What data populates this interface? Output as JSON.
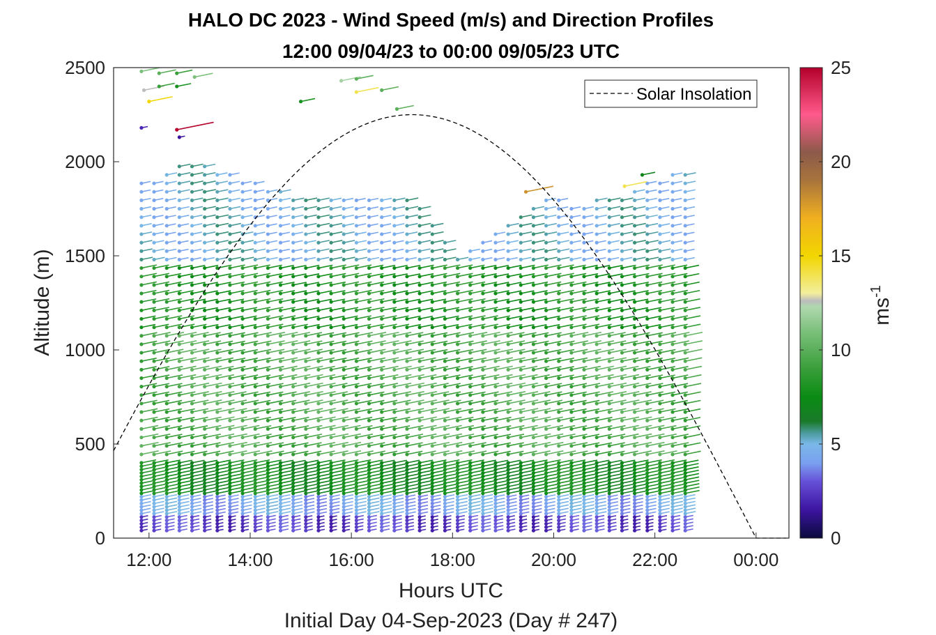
{
  "chart_data": {
    "type": "scatter",
    "title": "HALO DC 2023 - Wind Speed (m/s) and Direction Profiles",
    "subtitle": "12:00 09/04/23 to 00:00 09/05/23  UTC",
    "xlabel": "Hours UTC",
    "xlabel2": "Initial Day 04-Sep-2023 (Day # 247)",
    "ylabel": "Altitude (m)",
    "xlim": [
      11.3,
      24.65
    ],
    "ylim": [
      0,
      2500
    ],
    "xticks": [
      {
        "v": 12,
        "label": "12:00"
      },
      {
        "v": 14,
        "label": "14:00"
      },
      {
        "v": 16,
        "label": "16:00"
      },
      {
        "v": 18,
        "label": "18:00"
      },
      {
        "v": 20,
        "label": "20:00"
      },
      {
        "v": 22,
        "label": "22:00"
      },
      {
        "v": 24,
        "label": "00:00"
      }
    ],
    "yticks": [
      {
        "v": 0,
        "label": "0"
      },
      {
        "v": 500,
        "label": "500"
      },
      {
        "v": 1000,
        "label": "1000"
      },
      {
        "v": 1500,
        "label": "1500"
      },
      {
        "v": 2000,
        "label": "2000"
      },
      {
        "v": 2500,
        "label": "2500"
      }
    ],
    "colorbar": {
      "label": "ms",
      "label_sup": "-1",
      "range": [
        0,
        25
      ],
      "ticks": [
        {
          "v": 0,
          "label": "0"
        },
        {
          "v": 5,
          "label": "5"
        },
        {
          "v": 10,
          "label": "10"
        },
        {
          "v": 15,
          "label": "15"
        },
        {
          "v": 20,
          "label": "20"
        },
        {
          "v": 25,
          "label": "25"
        }
      ],
      "stops": [
        {
          "v": 0,
          "color": "#0a0a3c"
        },
        {
          "v": 1.5,
          "color": "#3c14a0"
        },
        {
          "v": 3,
          "color": "#6650d8"
        },
        {
          "v": 4,
          "color": "#7aa0f0"
        },
        {
          "v": 5,
          "color": "#7ab8e8"
        },
        {
          "v": 5.6,
          "color": "#4a9a9a"
        },
        {
          "v": 6.2,
          "color": "#1a7a2a"
        },
        {
          "v": 7.5,
          "color": "#0a8c14"
        },
        {
          "v": 9,
          "color": "#3a9e3a"
        },
        {
          "v": 11,
          "color": "#7cc07c"
        },
        {
          "v": 12.3,
          "color": "#b0d8b0"
        },
        {
          "v": 12.6,
          "color": "#bcbcbc"
        },
        {
          "v": 13,
          "color": "#f2ee9e"
        },
        {
          "v": 15,
          "color": "#f2d600"
        },
        {
          "v": 17,
          "color": "#f0b020"
        },
        {
          "v": 19,
          "color": "#a8743c"
        },
        {
          "v": 20.5,
          "color": "#8c5a4a"
        },
        {
          "v": 22.5,
          "color": "#ff5a8c"
        },
        {
          "v": 25,
          "color": "#b4002a"
        }
      ]
    },
    "legend": {
      "label": "Solar Insolation",
      "position": "top-right"
    },
    "solar_curve": {
      "peak_time": 17.2,
      "peak_altitude": 2250,
      "zero_times": [
        10.4,
        24.0
      ],
      "min_time": 11.3,
      "max_time": 24.6
    },
    "profiles": {
      "start_time": 11.85,
      "end_time": 22.75,
      "interval_hours": 0.25,
      "top_altitude_by_time": [
        {
          "t": 11.85,
          "alt": 1900
        },
        {
          "t": 12.8,
          "alt": 2000
        },
        {
          "t": 13.5,
          "alt": 1950
        },
        {
          "t": 14.5,
          "alt": 1850
        },
        {
          "t": 15.5,
          "alt": 1800
        },
        {
          "t": 16.5,
          "alt": 1820
        },
        {
          "t": 17.3,
          "alt": 1800
        },
        {
          "t": 17.8,
          "alt": 1600
        },
        {
          "t": 18.1,
          "alt": 1480
        },
        {
          "t": 19.0,
          "alt": 1680
        },
        {
          "t": 19.7,
          "alt": 1810
        },
        {
          "t": 20.5,
          "alt": 1780
        },
        {
          "t": 21.2,
          "alt": 1820
        },
        {
          "t": 22.0,
          "alt": 1920
        },
        {
          "t": 22.75,
          "alt": 1950
        }
      ],
      "speed_zones": [
        {
          "alt_from": 0,
          "alt_to": 130,
          "speed": 2.5
        },
        {
          "alt_from": 130,
          "alt_to": 230,
          "speed": 4.3
        },
        {
          "alt_from": 230,
          "alt_to": 420,
          "speed": 7.5
        },
        {
          "alt_from": 420,
          "alt_to": 1100,
          "speed": 9.5
        },
        {
          "alt_from": 1100,
          "alt_to": 1450,
          "speed": 8.0
        },
        {
          "alt_from": 1450,
          "alt_to": 2000,
          "speed": 5.0
        }
      ],
      "direction_deg": 300
    },
    "upper_points": [
      {
        "t": 11.85,
        "alt": 2480,
        "speed": 11
      },
      {
        "t": 12.2,
        "alt": 2470,
        "speed": 10
      },
      {
        "t": 12.55,
        "alt": 2470,
        "speed": 9
      },
      {
        "t": 12.9,
        "alt": 2450,
        "speed": 11
      },
      {
        "t": 11.9,
        "alt": 2380,
        "speed": 12.6
      },
      {
        "t": 12.2,
        "alt": 2400,
        "speed": 9
      },
      {
        "t": 12.55,
        "alt": 2400,
        "speed": 8
      },
      {
        "t": 12.0,
        "alt": 2320,
        "speed": 15
      },
      {
        "t": 15.0,
        "alt": 2320,
        "speed": 8
      },
      {
        "t": 15.8,
        "alt": 2430,
        "speed": 12
      },
      {
        "t": 16.1,
        "alt": 2370,
        "speed": 14
      },
      {
        "t": 16.1,
        "alt": 2440,
        "speed": 10
      },
      {
        "t": 16.6,
        "alt": 2380,
        "speed": 10
      },
      {
        "t": 16.9,
        "alt": 2280,
        "speed": 10
      },
      {
        "t": 11.85,
        "alt": 2180,
        "speed": 2
      },
      {
        "t": 12.55,
        "alt": 2170,
        "speed": 25
      },
      {
        "t": 12.6,
        "alt": 2130,
        "speed": 1.5
      },
      {
        "t": 19.45,
        "alt": 1840,
        "speed": 18
      },
      {
        "t": 21.4,
        "alt": 1870,
        "speed": 14
      },
      {
        "t": 21.75,
        "alt": 1930,
        "speed": 7
      }
    ]
  }
}
